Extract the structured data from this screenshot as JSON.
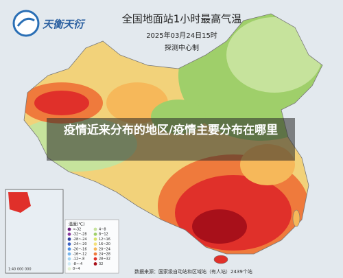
{
  "logo": {
    "text": "天衡天衍"
  },
  "header": {
    "title": "全国地面站1小时最高气温",
    "date": "2025年03月24日15时",
    "producer": "探测中心制"
  },
  "overlay": {
    "headline": "疫情近来分布的地区/疫情主要分布在哪里"
  },
  "legend": {
    "title": "温度(℃)",
    "items": [
      {
        "label": "<-32",
        "color": "#6b1f7a"
      },
      {
        "label": "-32~-28",
        "color": "#8a3a9c"
      },
      {
        "label": "-28~-24",
        "color": "#2d3f9e"
      },
      {
        "label": "-24~-20",
        "color": "#3b62c4"
      },
      {
        "label": "-20~-16",
        "color": "#4f8fe0"
      },
      {
        "label": "-16~-12",
        "color": "#77b6ee"
      },
      {
        "label": "-12~-8",
        "color": "#a6d5f2"
      },
      {
        "label": "-8~-4",
        "color": "#cfeaf5"
      },
      {
        "label": "0~4",
        "color": "#e4f2d0"
      },
      {
        "label": "4~8",
        "color": "#c6e39c"
      },
      {
        "label": "8~12",
        "color": "#9fcf6a"
      },
      {
        "label": "12~16",
        "color": "#d9e36a"
      },
      {
        "label": "16~20",
        "color": "#f5e07a"
      },
      {
        "label": "20~24",
        "color": "#f6b85a"
      },
      {
        "label": "24~28",
        "color": "#ef7a3c"
      },
      {
        "label": "28~32",
        "color": "#e0302a"
      },
      {
        "label": "32",
        "color": "#a8101a"
      }
    ]
  },
  "footer": {
    "source": "数据来源：国家级自动站和区域站（有人站）2439个站",
    "scale": "1:40 000 000"
  }
}
